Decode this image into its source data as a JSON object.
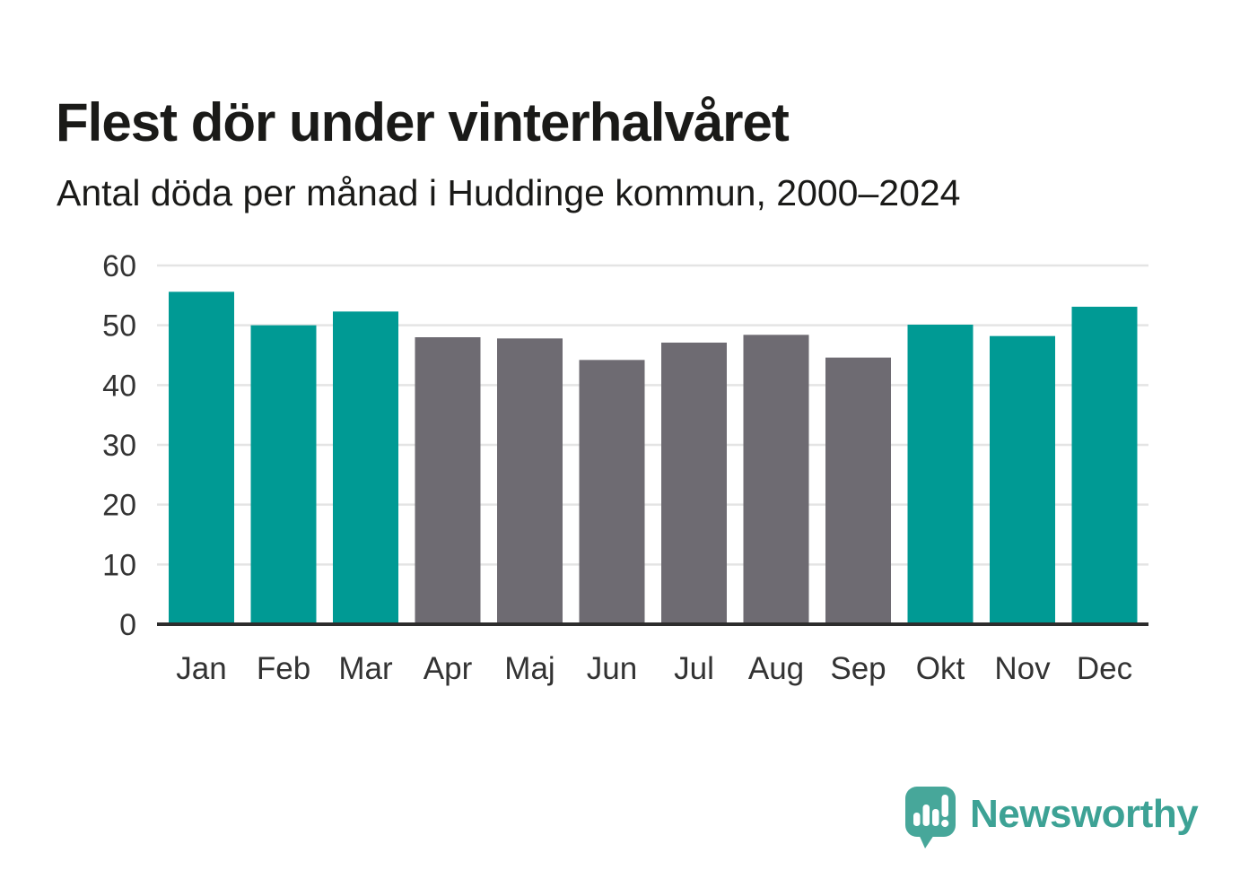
{
  "chart_data": {
    "type": "bar",
    "title": "Flest dör under vinterhalvåret",
    "subtitle": "Antal döda per månad i Huddinge kommun, 2000–2024",
    "categories": [
      "Jan",
      "Feb",
      "Mar",
      "Apr",
      "Maj",
      "Jun",
      "Jul",
      "Aug",
      "Sep",
      "Okt",
      "Nov",
      "Dec"
    ],
    "values": [
      55.6,
      50.0,
      52.3,
      48.0,
      47.8,
      44.2,
      47.1,
      48.4,
      44.6,
      50.1,
      48.2,
      53.1
    ],
    "bar_color_keys": [
      "winter",
      "winter",
      "winter",
      "summer",
      "summer",
      "summer",
      "summer",
      "summer",
      "summer",
      "winter",
      "winter",
      "winter"
    ],
    "y_ticks": [
      0,
      10,
      20,
      30,
      40,
      50,
      60
    ],
    "ylim": [
      0,
      60
    ],
    "xlabel": "",
    "ylabel": "",
    "grid": true,
    "legend_position": "none",
    "colors": {
      "winter": "#009a94",
      "summer": "#6e6b72",
      "gridline": "#e4e4e4",
      "axis_line": "#2d2d2d",
      "tick_text": "#333333",
      "title_text": "#1a1a18"
    }
  },
  "branding": {
    "name": "Newsworthy",
    "logo_icon": "speech-bubble-bar-chart-icon",
    "wordmark_color": "#3da295",
    "icon_color": "#47a79a"
  }
}
